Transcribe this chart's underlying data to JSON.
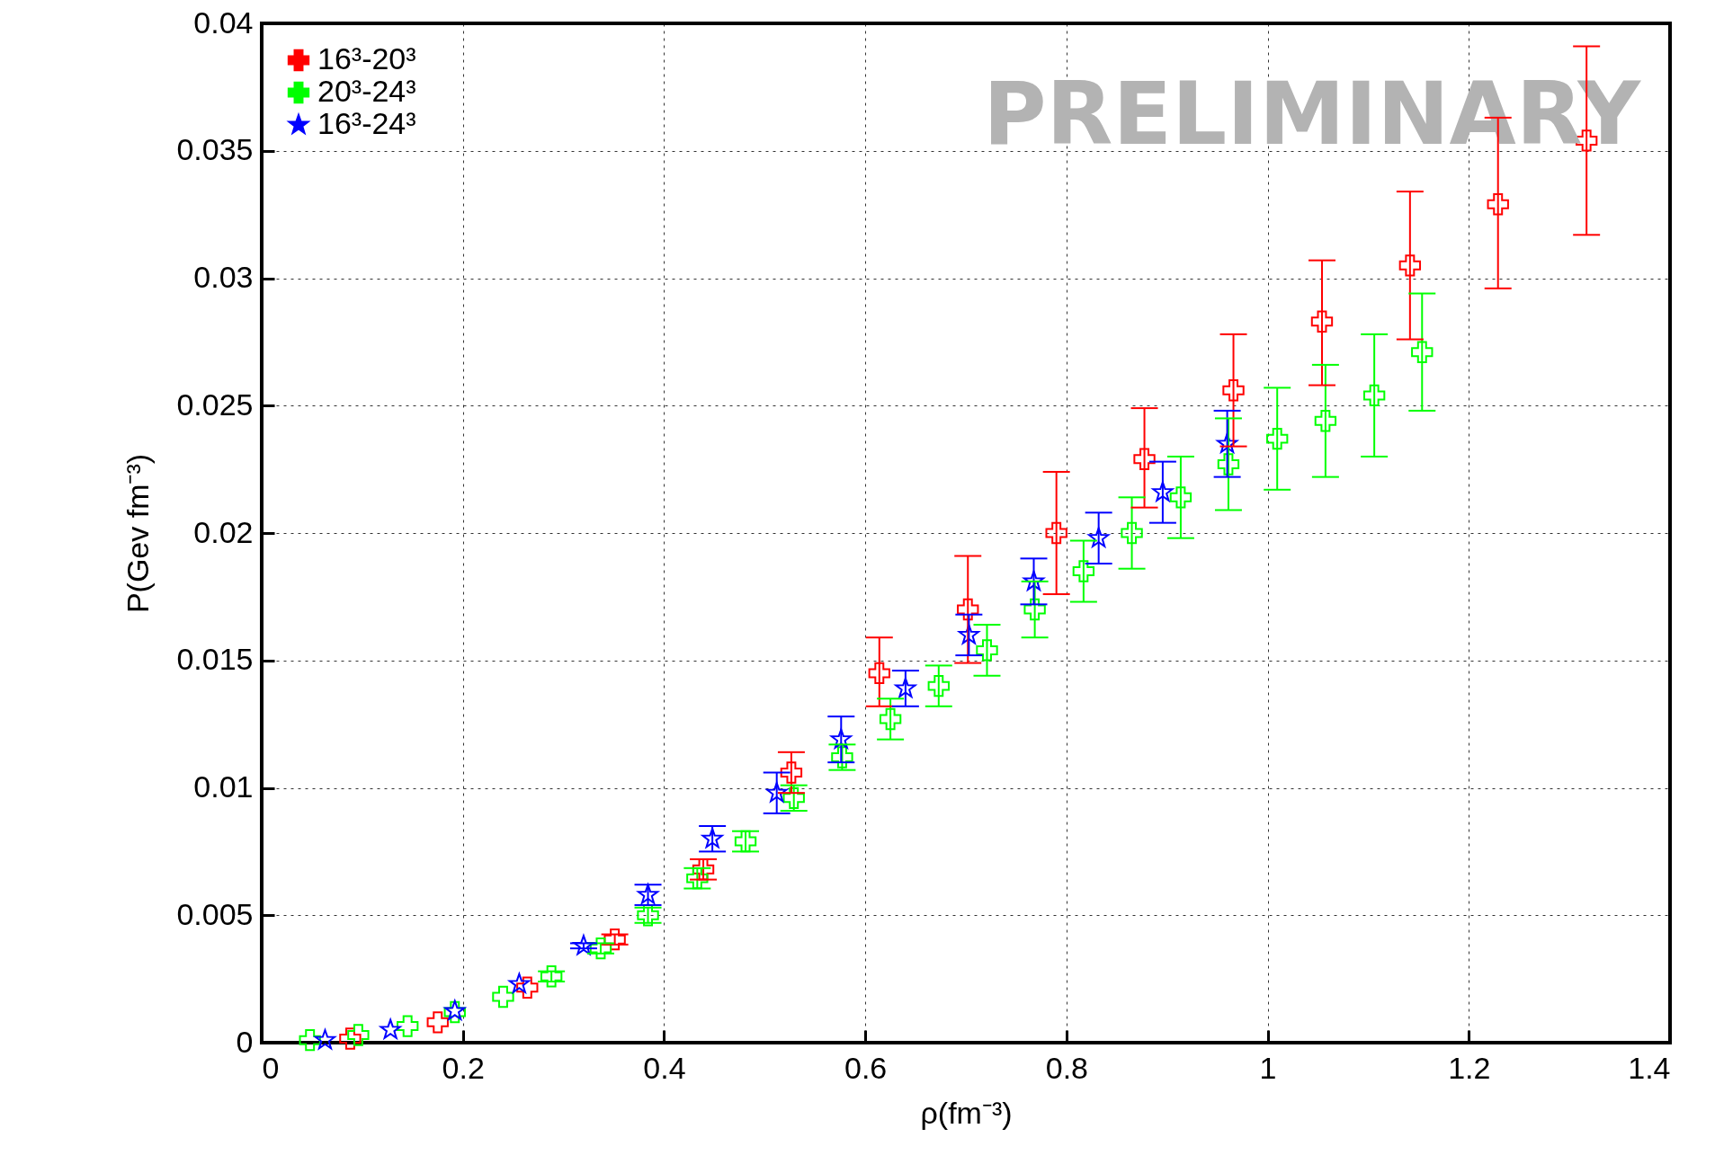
{
  "chart_data": {
    "type": "scatter",
    "xlabel": "ρ(fm⁻³)",
    "ylabel": "P(Gev fm⁻³)",
    "annotations": [
      "PRELIMINARY"
    ],
    "xlim": [
      0,
      1.4
    ],
    "xticks": [
      0,
      0.2,
      0.4,
      0.6,
      0.8,
      1,
      1.2,
      1.4
    ],
    "ylim": [
      0,
      0.04
    ],
    "yticks": [
      0,
      0.005,
      0.01,
      0.015,
      0.02,
      0.025,
      0.03,
      0.035,
      0.04
    ],
    "grid": true,
    "legend": "top left",
    "series": [
      {
        "name": "16³-20³",
        "color": "#ff0000",
        "marker": "cross",
        "x": [
          0.088,
          0.175,
          0.264,
          0.351,
          0.439,
          0.5265,
          0.614,
          0.702,
          0.79,
          0.8775,
          0.966,
          1.054,
          1.1415,
          1.229,
          1.317
        ],
        "values": [
          0.00016,
          0.0008,
          0.00216,
          0.00405,
          0.0068,
          0.0106,
          0.0145,
          0.017,
          0.02,
          0.0229,
          0.0256,
          0.0283,
          0.0305,
          0.0329,
          0.0354
        ],
        "errors": [
          null,
          null,
          null,
          0.0002,
          0.0004,
          [
            0.0098,
            0.0114
          ],
          [
            0.0132,
            0.0159
          ],
          [
            0.0149,
            0.0191
          ],
          [
            0.0176,
            0.0224
          ],
          [
            0.021,
            0.0249
          ],
          [
            0.0234,
            0.0278
          ],
          [
            0.0258,
            0.0307
          ],
          [
            0.0276,
            0.0334
          ],
          [
            0.0296,
            0.0363
          ],
          [
            0.0317,
            0.0391
          ]
        ]
      },
      {
        "name": "20³-24³",
        "color": "#00ff00",
        "marker": "cross",
        "x": [
          0.048,
          0.096,
          0.145,
          0.192,
          0.24,
          0.288,
          0.337,
          0.384,
          0.433,
          0.481,
          0.529,
          0.577,
          0.625,
          0.673,
          0.721,
          0.7685,
          0.817,
          0.865,
          0.9136,
          0.961,
          1.0095,
          1.0575,
          1.106,
          1.1535
        ],
        "values": [
          0.0001,
          0.0003,
          0.00065,
          0.0012,
          0.0018,
          0.0026,
          0.0037,
          0.005,
          0.00645,
          0.0079,
          0.0096,
          0.0112,
          0.0127,
          0.014,
          0.0154,
          0.017,
          0.0185,
          0.02,
          0.0214,
          0.0227,
          0.0237,
          0.0244,
          0.0254,
          0.0271
        ],
        "errors": [
          null,
          null,
          null,
          null,
          null,
          0.0002,
          0.0002,
          0.0003,
          0.0004,
          0.0004,
          0.0005,
          0.0005,
          0.0008,
          0.0008,
          0.001,
          0.0011,
          0.0012,
          0.0014,
          0.0016,
          0.0018,
          0.002,
          0.0022,
          0.0024,
          0.0023
        ]
      },
      {
        "name": "16³-24³",
        "color": "#0000ff",
        "marker": "star",
        "x": [
          0.063,
          0.128,
          0.192,
          0.256,
          0.32,
          0.384,
          0.448,
          0.512,
          0.576,
          0.64,
          0.703,
          0.7675,
          0.832,
          0.8957,
          0.9598
        ],
        "values": [
          0.0001,
          0.0005,
          0.00124,
          0.0023,
          0.0038,
          0.0058,
          0.008,
          0.0098,
          0.0119,
          0.0139,
          0.016,
          0.0181,
          0.0198,
          0.0216,
          0.0235
        ],
        "errors": [
          null,
          null,
          null,
          null,
          0.0001,
          0.0004,
          0.0005,
          0.0008,
          0.0009,
          0.0007,
          0.0008,
          0.0009,
          0.001,
          0.0012,
          0.0013
        ]
      }
    ]
  }
}
